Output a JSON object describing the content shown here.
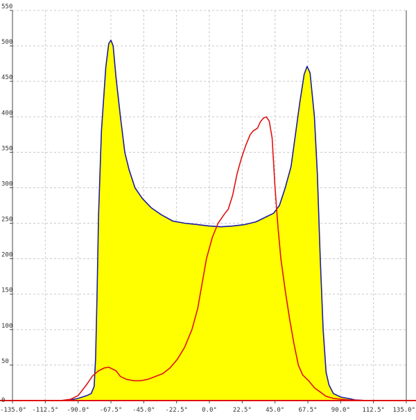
{
  "chart_data": {
    "type": "area",
    "title": "",
    "xlabel": "",
    "ylabel": "",
    "xlim": [
      -135,
      135
    ],
    "ylim": [
      0,
      550
    ],
    "grid": true,
    "legend": "none",
    "x_ticks": [
      -135,
      -112.5,
      -90,
      -67.5,
      -45,
      -22.5,
      0,
      22.5,
      45,
      67.5,
      90,
      112.5,
      135
    ],
    "x_tick_labels": [
      "-135.0°",
      "-112.5°",
      "-90.0°",
      "-67.5°",
      "-45.0°",
      "-22.5°",
      "0.0°",
      "22.5°",
      "45.0°",
      "67.5°",
      "90.0°",
      "112.5°",
      "135.0°"
    ],
    "y_ticks": [
      0,
      50,
      100,
      150,
      200,
      250,
      300,
      350,
      400,
      450,
      500,
      550
    ],
    "y_tick_labels": [
      "0",
      "50",
      "100",
      "150",
      "200",
      "250",
      "300",
      "350",
      "400",
      "450",
      "500",
      "550"
    ],
    "colors": {
      "fill": "#ffff00",
      "blue_line": "#1a1aa0",
      "red_line": "#e01010",
      "axis": "#e01010",
      "grid": "#c8c8c8",
      "frame": "#444444"
    },
    "series": [
      {
        "color": "#1a1aa0",
        "filled": true,
        "points": [
          [
            -102,
            0
          ],
          [
            -95,
            1
          ],
          [
            -90,
            3
          ],
          [
            -84,
            7
          ],
          [
            -81,
            10
          ],
          [
            -79,
            20
          ],
          [
            -78,
            60
          ],
          [
            -77,
            150
          ],
          [
            -76,
            260
          ],
          [
            -74,
            380
          ],
          [
            -71,
            470
          ],
          [
            -69,
            503
          ],
          [
            -67.5,
            508
          ],
          [
            -66,
            500
          ],
          [
            -64,
            455
          ],
          [
            -61,
            400
          ],
          [
            -58,
            350
          ],
          [
            -55,
            325
          ],
          [
            -51,
            300
          ],
          [
            -46,
            285
          ],
          [
            -40,
            272
          ],
          [
            -33,
            262
          ],
          [
            -25,
            253
          ],
          [
            -17,
            250
          ],
          [
            -8,
            248
          ],
          [
            0,
            246
          ],
          [
            8,
            245
          ],
          [
            16,
            246
          ],
          [
            24,
            248
          ],
          [
            32,
            252
          ],
          [
            38,
            258
          ],
          [
            44,
            264
          ],
          [
            48,
            275
          ],
          [
            52,
            300
          ],
          [
            56,
            330
          ],
          [
            59,
            375
          ],
          [
            62,
            420
          ],
          [
            65,
            460
          ],
          [
            67,
            471
          ],
          [
            69,
            462
          ],
          [
            72,
            400
          ],
          [
            74,
            320
          ],
          [
            76,
            200
          ],
          [
            78,
            100
          ],
          [
            80,
            40
          ],
          [
            82,
            22
          ],
          [
            85,
            10
          ],
          [
            90,
            5
          ],
          [
            100,
            1
          ],
          [
            108,
            0
          ]
        ]
      },
      {
        "color": "#e01010",
        "filled": false,
        "points": [
          [
            -102,
            0
          ],
          [
            -95,
            2
          ],
          [
            -90,
            7
          ],
          [
            -87,
            15
          ],
          [
            -84,
            23
          ],
          [
            -80,
            35
          ],
          [
            -76,
            42
          ],
          [
            -72,
            46
          ],
          [
            -69,
            47
          ],
          [
            -67,
            45
          ],
          [
            -64,
            42
          ],
          [
            -61,
            34
          ],
          [
            -57,
            30
          ],
          [
            -52,
            28
          ],
          [
            -47,
            28
          ],
          [
            -42,
            30
          ],
          [
            -37,
            34
          ],
          [
            -32,
            38
          ],
          [
            -27,
            46
          ],
          [
            -22,
            58
          ],
          [
            -17,
            75
          ],
          [
            -12,
            100
          ],
          [
            -8,
            130
          ],
          [
            -5,
            165
          ],
          [
            -2,
            200
          ],
          [
            2,
            230
          ],
          [
            6,
            250
          ],
          [
            10,
            262
          ],
          [
            13,
            270
          ],
          [
            16,
            290
          ],
          [
            19,
            320
          ],
          [
            22,
            342
          ],
          [
            25,
            360
          ],
          [
            28,
            375
          ],
          [
            30,
            380
          ],
          [
            33,
            384
          ],
          [
            35,
            393
          ],
          [
            37,
            398
          ],
          [
            39,
            400
          ],
          [
            41,
            394
          ],
          [
            43,
            370
          ],
          [
            45,
            300
          ],
          [
            47,
            245
          ],
          [
            49,
            200
          ],
          [
            52,
            155
          ],
          [
            55,
            115
          ],
          [
            58,
            80
          ],
          [
            61,
            50
          ],
          [
            64,
            36
          ],
          [
            68,
            28
          ],
          [
            72,
            18
          ],
          [
            76,
            12
          ],
          [
            80,
            6
          ],
          [
            85,
            3
          ],
          [
            95,
            1
          ],
          [
            108,
            0
          ]
        ]
      }
    ]
  }
}
